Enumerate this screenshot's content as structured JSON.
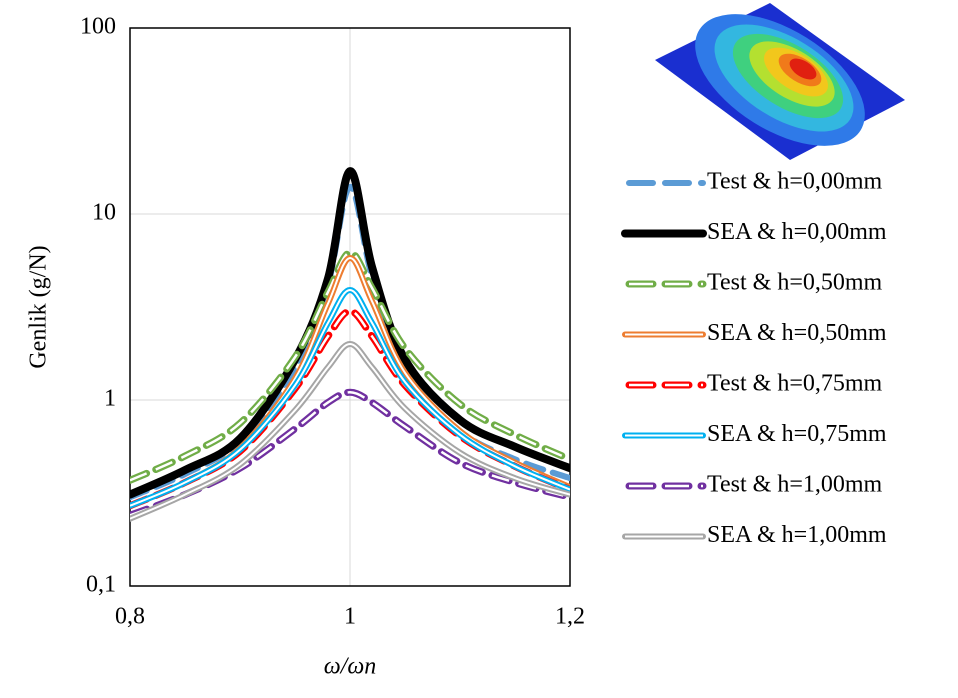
{
  "chart_data": {
    "type": "line",
    "x_label": "ω/ωn",
    "y_label": "Genlik (g/N)",
    "log_y": true,
    "grid": true,
    "x": [
      0.8,
      0.85,
      0.9,
      0.95,
      0.98,
      1.0,
      1.02,
      1.05,
      1.1,
      1.15,
      1.2
    ],
    "xlim": [
      0.8,
      1.2
    ],
    "xticks": [
      {
        "value": 0.8,
        "label": "0,8"
      },
      1,
      {
        "value": 1.2,
        "label": "1,2"
      }
    ],
    "ylim": [
      0.1,
      100
    ],
    "yticks": [
      {
        "value": 0.1,
        "label": "0,1"
      },
      1,
      10,
      100
    ],
    "legend": "right",
    "series": [
      {
        "name": "Test & h=0,00mm",
        "color": "#5b9bd5",
        "style": "dashed",
        "values": [
          0.3,
          0.4,
          0.6,
          1.5,
          4.2,
          14,
          4.6,
          1.45,
          0.68,
          0.48,
          0.38
        ]
      },
      {
        "name": "SEA & h=0,00mm",
        "color": "#000000",
        "style": "solid",
        "values": [
          0.31,
          0.42,
          0.62,
          1.65,
          4.5,
          17,
          5.2,
          1.65,
          0.78,
          0.56,
          0.43
        ]
      },
      {
        "name": "Test & h=0,50mm",
        "color": "#70ad47",
        "style": "double-dashed",
        "values": [
          0.37,
          0.5,
          0.75,
          1.7,
          3.8,
          6.2,
          4.0,
          1.9,
          0.95,
          0.65,
          0.48
        ]
      },
      {
        "name": "SEA & h=0,50mm",
        "color": "#ed7d31",
        "style": "double",
        "values": [
          0.27,
          0.36,
          0.55,
          1.3,
          3.3,
          5.8,
          3.4,
          1.4,
          0.68,
          0.46,
          0.34
        ]
      },
      {
        "name": "Test & h=0,75mm",
        "color": "#ff0000",
        "style": "double-dashed",
        "values": [
          0.27,
          0.36,
          0.53,
          1.15,
          2.2,
          3.0,
          2.2,
          1.2,
          0.64,
          0.44,
          0.33
        ]
      },
      {
        "name": "SEA & h=0,75mm",
        "color": "#00b0f0",
        "style": "double",
        "values": [
          0.27,
          0.36,
          0.54,
          1.2,
          2.6,
          3.9,
          2.6,
          1.25,
          0.65,
          0.44,
          0.33
        ]
      },
      {
        "name": "Test & h=1,00mm",
        "color": "#7030a0",
        "style": "double-dashed",
        "values": [
          0.24,
          0.31,
          0.43,
          0.7,
          0.97,
          1.1,
          0.97,
          0.72,
          0.46,
          0.36,
          0.3
        ]
      },
      {
        "name": "SEA & h=1,00mm",
        "color": "#a6a6a6",
        "style": "double",
        "values": [
          0.23,
          0.31,
          0.45,
          0.88,
          1.5,
          2.0,
          1.5,
          0.9,
          0.52,
          0.38,
          0.31
        ]
      }
    ]
  }
}
